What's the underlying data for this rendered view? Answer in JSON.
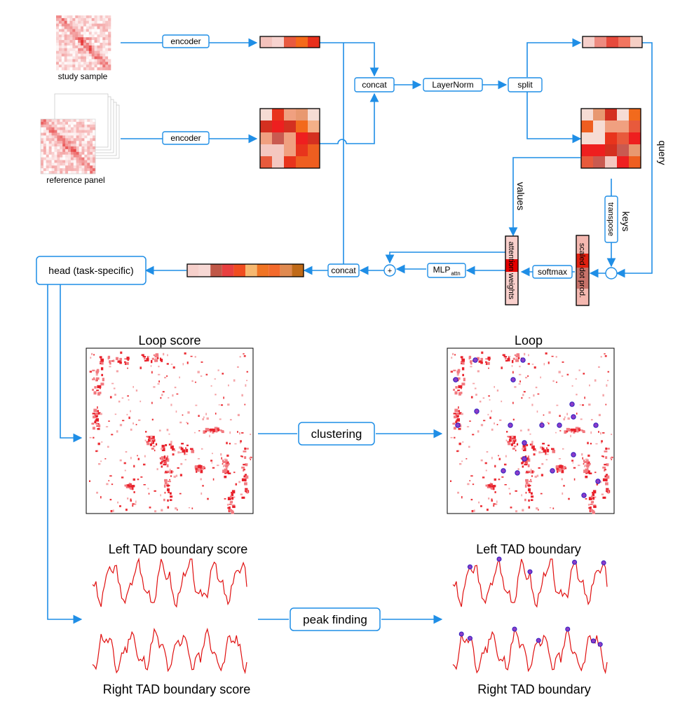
{
  "inputs": {
    "study_sample_label": "study sample",
    "reference_panel_label": "reference panel"
  },
  "blocks": {
    "encoder_1": "encoder",
    "encoder_2": "encoder",
    "concat_1": "concat",
    "layernorm": "LayerNorm",
    "split": "split",
    "transpose": "transpose",
    "softmax": "softmax",
    "mlp": "MLP",
    "mlp_sub": "attn",
    "plus": "+",
    "concat_2": "concat",
    "head": "head (task-specific)",
    "clustering": "clustering",
    "peak_finding": "peak finding"
  },
  "arrow_labels": {
    "query": "query",
    "keys": "keys",
    "values": "values"
  },
  "vectors": {
    "attention_weights": "attention weights",
    "scaled_dot_prod": "scaled dot prod."
  },
  "panels": {
    "loop_score_title": "Loop score",
    "loop_title": "Loop",
    "left_score_title": "Left TAD boundary score",
    "left_title": "Left TAD boundary",
    "right_score_title": "Right TAD boundary score",
    "right_title": "Right TAD boundary"
  },
  "colors": {
    "arrow": "#1f8ee6",
    "accent_red": "#e00000",
    "marker": "#3a22c8"
  }
}
